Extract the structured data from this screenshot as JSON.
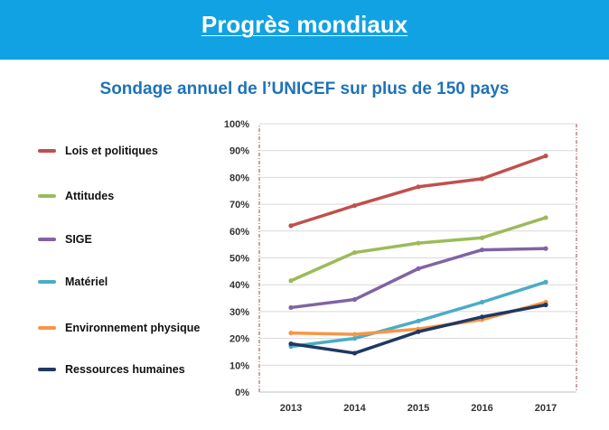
{
  "banner": {
    "title": "Progrès mondiaux",
    "color": "#11a2e3"
  },
  "chart_data": {
    "type": "line",
    "title": "Sondage annuel de l’UNICEF sur plus de 150 pays",
    "xlabel": "",
    "ylabel": "",
    "x": [
      "2013",
      "2014",
      "2015",
      "2016",
      "2017"
    ],
    "ylim": [
      0,
      100
    ],
    "yticks": [
      "0%",
      "10%",
      "20%",
      "30%",
      "40%",
      "50%",
      "60%",
      "70%",
      "80%",
      "90%",
      "100%"
    ],
    "grid": true,
    "legend_position": "left",
    "series": [
      {
        "name": "Lois et politiques",
        "color": "#c0504d",
        "values": [
          62,
          69.5,
          76.5,
          79.5,
          88
        ]
      },
      {
        "name": "Attitudes",
        "color": "#9bbb59",
        "values": [
          41.5,
          52,
          55.5,
          57.5,
          65
        ]
      },
      {
        "name": "SIGE",
        "color": "#8064a2",
        "values": [
          31.5,
          34.5,
          46,
          53,
          53.5
        ]
      },
      {
        "name": "Matériel",
        "color": "#4bacc6",
        "values": [
          17,
          20,
          26.5,
          33.5,
          41
        ]
      },
      {
        "name": "Environnement physique",
        "color": "#f79646",
        "values": [
          22,
          21.5,
          23.5,
          27,
          33.5
        ]
      },
      {
        "name": "Ressources humaines",
        "color": "#1f3864",
        "values": [
          18,
          14.5,
          22.5,
          28,
          32.5
        ]
      }
    ]
  }
}
